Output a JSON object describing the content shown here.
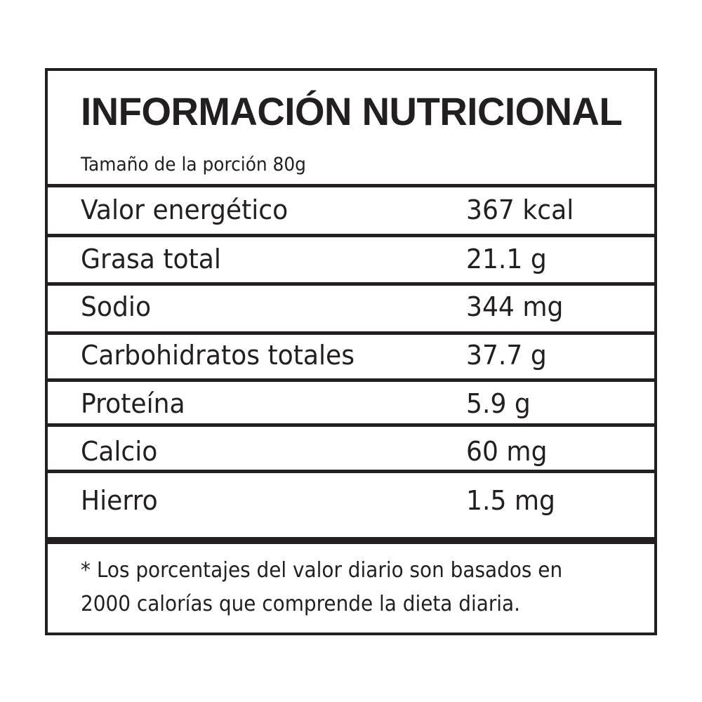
{
  "title": "INFORMACIÓN NUTRICIONAL",
  "serving": "Tamaño de la porción 80g",
  "rows": [
    {
      "label": "Valor energético",
      "value": "367 kcal"
    },
    {
      "label": "Grasa  total",
      "value": "21.1 g"
    },
    {
      "label": "Sodio",
      "value": "344 mg"
    },
    {
      "label": "Carbohidratos totales",
      "value": "37.7 g"
    },
    {
      "label": "Proteína",
      "value": "5.9 g"
    },
    {
      "label": "Calcio",
      "value": "60 mg"
    },
    {
      "label": "Hierro",
      "value": "1.5 mg"
    }
  ],
  "footnote": {
    "line1": "* Los porcentajes del valor diario son basados en",
    "line2": "2000 calorías que comprende la dieta diaria."
  }
}
